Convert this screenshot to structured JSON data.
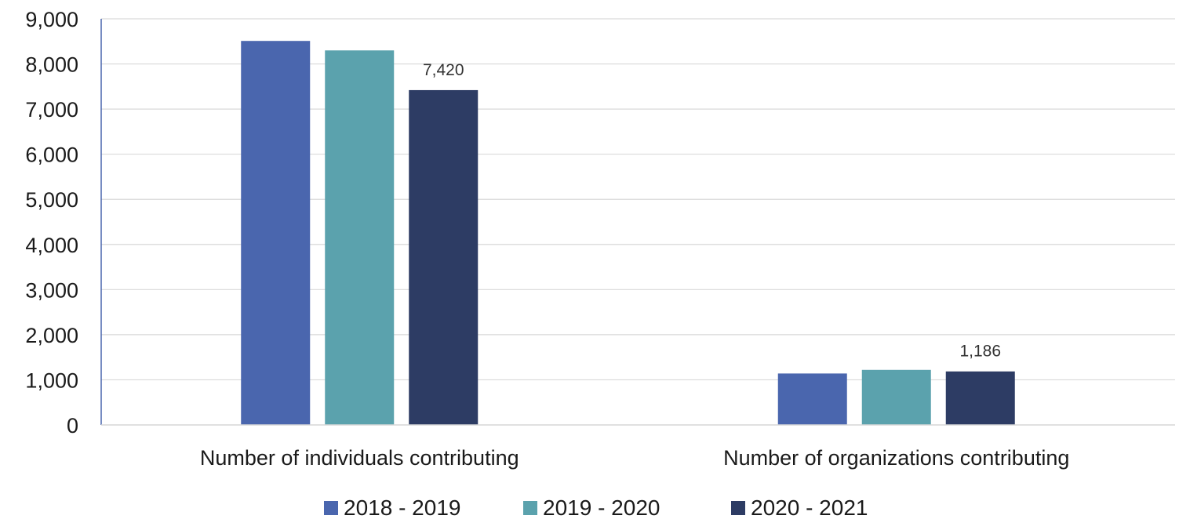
{
  "chart_data": {
    "type": "bar",
    "title": "",
    "xlabel": "",
    "ylabel": "",
    "ylim": [
      0,
      9000
    ],
    "yticks": [
      0,
      1000,
      2000,
      3000,
      4000,
      5000,
      6000,
      7000,
      8000,
      9000
    ],
    "ytick_labels": [
      "0",
      "1,000",
      "2,000",
      "3,000",
      "4,000",
      "5,000",
      "6,000",
      "7,000",
      "8,000",
      "9,000"
    ],
    "categories": [
      "Number of individuals contributing",
      "Number of organizations contributing"
    ],
    "series": [
      {
        "name": "2018 - 2019",
        "color": "#4a66ae",
        "values": [
          8510,
          1140
        ],
        "data_labels": [
          "",
          ""
        ]
      },
      {
        "name": "2019 - 2020",
        "color": "#5ba2ad",
        "values": [
          8300,
          1220
        ],
        "data_labels": [
          "",
          ""
        ]
      },
      {
        "name": "2020 - 2021",
        "color": "#2d3c64",
        "values": [
          7420,
          1186
        ],
        "data_labels": [
          "7,420",
          "1,186"
        ]
      }
    ],
    "grid": true,
    "legend_position": "bottom"
  }
}
